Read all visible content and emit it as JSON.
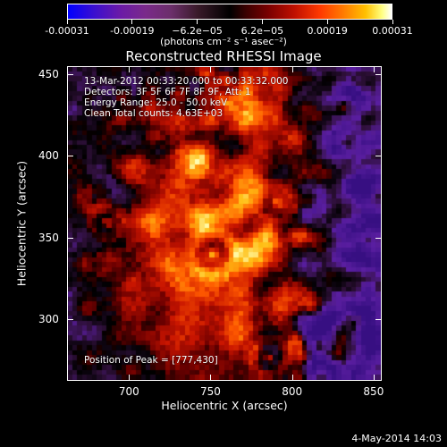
{
  "colorbar": {
    "tick_labels": [
      "-0.00031",
      "-0.00019",
      "−6.2e−05",
      "6.2e−05",
      "0.00019",
      "0.00031"
    ],
    "units": "(photons cm⁻² s⁻¹ asec⁻²)"
  },
  "title": "Reconstructed RHESSI Image",
  "annotations": {
    "line1": "13-Mar-2012 00:33:20.000 to 00:33:32.000",
    "line2": "Detectors: 3F 5F 6F 7F 8F 9F, Att: 1",
    "line3": "Energy Range: 25.0 - 50.0 keV",
    "line4": "Clean    Total counts: 4.63E+03",
    "peak": "Position of Peak = [777,430]"
  },
  "axes": {
    "xlabel": "Heliocentric X (arcsec)",
    "ylabel": "Heliocentric Y (arcsec)",
    "xticks": [
      "700",
      "750",
      "800",
      "850"
    ],
    "yticks": [
      "450",
      "400",
      "350",
      "300"
    ],
    "xlim": [
      662,
      855
    ],
    "ylim": [
      262,
      455
    ]
  },
  "timestamp": "4-May-2014 14:03",
  "colors": {
    "background": "#000000",
    "foreground": "#ffffff"
  }
}
